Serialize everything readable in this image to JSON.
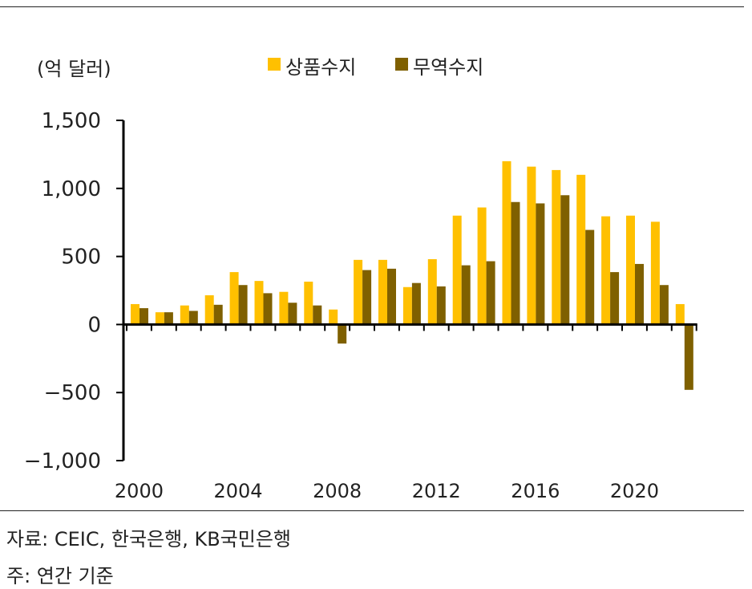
{
  "chart_data": {
    "type": "bar",
    "unit_label": "(억 달러)",
    "series": [
      {
        "name": "상품수지",
        "color": "#FFC000",
        "values": [
          150,
          90,
          140,
          215,
          385,
          320,
          240,
          315,
          110,
          475,
          475,
          275,
          480,
          800,
          860,
          1200,
          1160,
          1135,
          1100,
          795,
          800,
          755,
          150
        ]
      },
      {
        "name": "무역수지",
        "color": "#7F6000",
        "values": [
          120,
          90,
          100,
          145,
          290,
          230,
          160,
          140,
          -140,
          400,
          410,
          305,
          280,
          435,
          465,
          900,
          890,
          950,
          695,
          385,
          445,
          290,
          -480
        ]
      }
    ],
    "x": [
      2000,
      2001,
      2002,
      2003,
      2004,
      2005,
      2006,
      2007,
      2008,
      2009,
      2010,
      2011,
      2012,
      2013,
      2014,
      2015,
      2016,
      2017,
      2018,
      2019,
      2020,
      2021,
      2022
    ],
    "x_tick_labels": [
      {
        "year": 2000,
        "label": "2000"
      },
      {
        "year": 2004,
        "label": "2004"
      },
      {
        "year": 2008,
        "label": "2008"
      },
      {
        "year": 2012,
        "label": "2012"
      },
      {
        "year": 2016,
        "label": "2016"
      },
      {
        "year": 2020,
        "label": "2020"
      }
    ],
    "y_ticks": [
      {
        "value": 1500,
        "label": "1,500"
      },
      {
        "value": 1000,
        "label": "1,000"
      },
      {
        "value": 500,
        "label": "500"
      },
      {
        "value": 0,
        "label": "0"
      },
      {
        "value": -500,
        "label": "−500"
      },
      {
        "value": -1000,
        "label": "−1,000"
      }
    ],
    "ylim": [
      -1000,
      1500
    ],
    "legend_position": "top-center",
    "grid": false
  },
  "notes": {
    "source": "자료: CEIC, 한국은행, KB국민은행",
    "basis": "주: 연간 기준"
  }
}
